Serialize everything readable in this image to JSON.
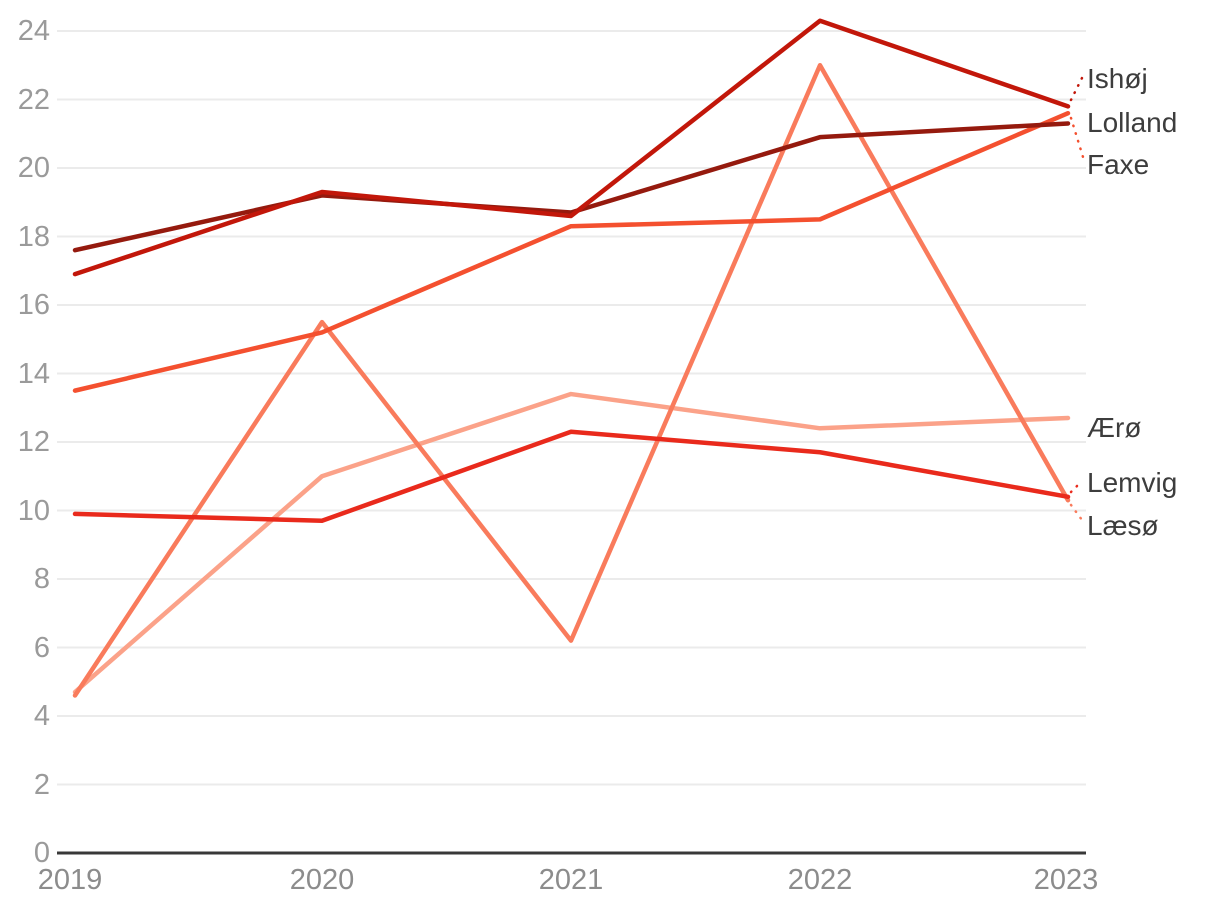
{
  "chart_data": {
    "type": "line",
    "title": "",
    "xlabel": "",
    "ylabel": "",
    "x": [
      2019,
      2020,
      2021,
      2022,
      2023
    ],
    "x_tick_labels": [
      "2019",
      "2020",
      "2021",
      "2022",
      "2023"
    ],
    "y_ticks": [
      0,
      2,
      4,
      6,
      8,
      10,
      12,
      14,
      16,
      18,
      20,
      22,
      24
    ],
    "ylim": [
      0,
      24
    ],
    "grid": "horizontal-light",
    "legend_position": "right-edge-direct-labels",
    "axis_line_color": "#383838",
    "grid_color": "#ebebeb",
    "tick_label_color": "#9a9a9a",
    "series_label_color": "#3d3d3d",
    "series": [
      {
        "key": "ishoj",
        "name": "Ishøj",
        "color": "#c2170a",
        "values": [
          16.9,
          19.3,
          18.6,
          24.3,
          21.8
        ],
        "label_leader": true
      },
      {
        "key": "lolland",
        "name": "Lolland",
        "color": "#951a0e",
        "values": [
          17.6,
          19.2,
          18.7,
          20.9,
          21.3
        ],
        "label_leader": false
      },
      {
        "key": "faxe",
        "name": "Faxe",
        "color": "#f4502f",
        "values": [
          13.5,
          15.2,
          18.3,
          18.5,
          21.6
        ],
        "label_leader": true
      },
      {
        "key": "aero",
        "name": "Ærø",
        "color": "#fba289",
        "values": [
          4.7,
          11.0,
          13.4,
          12.4,
          12.7
        ],
        "label_leader": false
      },
      {
        "key": "lemvig",
        "name": "Lemvig",
        "color": "#e92a1c",
        "values": [
          9.9,
          9.7,
          12.3,
          11.7,
          10.4
        ],
        "label_leader": true
      },
      {
        "key": "laeso",
        "name": "Læsø",
        "color": "#f97b5c",
        "values": [
          4.6,
          15.5,
          6.2,
          23.0,
          10.3
        ],
        "label_leader": true
      }
    ]
  }
}
